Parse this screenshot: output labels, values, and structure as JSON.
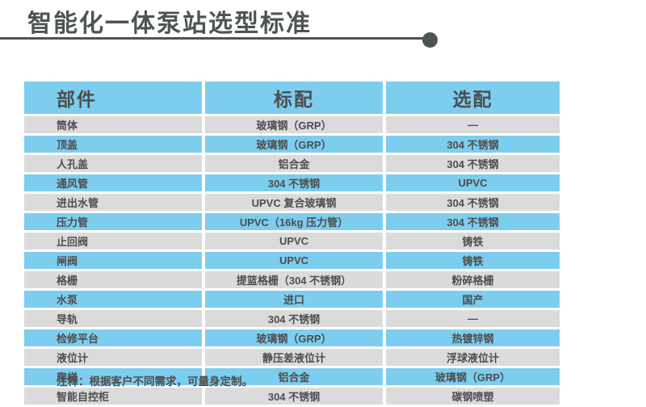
{
  "page": {
    "title": "智能化一体泵站选型标准",
    "footnote": "注释：根据客户不同需求，可量身定制。"
  },
  "colors": {
    "accent_dark": "#4D554F",
    "header_blue": "#7DCDEF",
    "row_blue": "#7DCDEF",
    "row_gray": "#DBDBDB",
    "text_gray": "#4D4D4D"
  },
  "table": {
    "columns": [
      {
        "label": "部件"
      },
      {
        "label": "标配"
      },
      {
        "label": "选配"
      }
    ],
    "rows": [
      {
        "part": "筒体",
        "standard": "玻璃钢（GRP）",
        "optional": "—"
      },
      {
        "part": "顶盖",
        "standard": "玻璃钢（GRP）",
        "optional": "304 不锈钢"
      },
      {
        "part": "人孔盖",
        "standard": "铝合金",
        "optional": "304 不锈钢"
      },
      {
        "part": "通风管",
        "standard": "304 不锈钢",
        "optional": "UPVC"
      },
      {
        "part": "进出水管",
        "standard": "UPVC 复合玻璃钢",
        "optional": "304 不锈钢"
      },
      {
        "part": "压力管",
        "standard": "UPVC（16kg 压力管）",
        "optional": "304 不锈钢"
      },
      {
        "part": "止回阀",
        "standard": "UPVC",
        "optional": "铸铁"
      },
      {
        "part": "闸阀",
        "standard": "UPVC",
        "optional": "铸铁"
      },
      {
        "part": "格栅",
        "standard": "提篮格栅（304 不锈钢）",
        "optional": "粉碎格栅"
      },
      {
        "part": "水泵",
        "standard": "进口",
        "optional": "国产"
      },
      {
        "part": "导轨",
        "standard": "304 不锈钢",
        "optional": "—"
      },
      {
        "part": "检修平台",
        "standard": "玻璃钢（GRP）",
        "optional": "热镀锌钢"
      },
      {
        "part": "液位计",
        "standard": "静压差液位计",
        "optional": "浮球液位计"
      },
      {
        "part": "爬梯",
        "standard": "铝合金",
        "optional": "玻璃钢（GRP）"
      },
      {
        "part": "智能自控柜",
        "standard": "304 不锈钢",
        "optional": "碳钢喷塑"
      }
    ]
  }
}
